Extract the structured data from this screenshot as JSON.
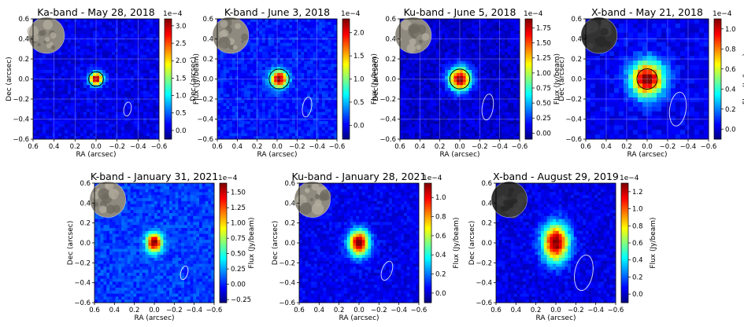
{
  "figure": {
    "colormap": "jet",
    "panel_label_colors": {
      "grid": "#c8d4ff",
      "beam": "#ffffff",
      "limb": "#000000"
    }
  },
  "chart_data": [
    {
      "type": "heatmap",
      "title": "Ka-band - May 28, 2018",
      "xlabel": "RA (arcsec)",
      "ylabel": "Dec (arcsec)",
      "xlim": [
        0.6,
        -0.6
      ],
      "ylim": [
        -0.6,
        0.6
      ],
      "xticks": [
        "0.6",
        "0.4",
        "0.2",
        "0.0",
        "−0.2",
        "−0.4",
        "−0.6"
      ],
      "yticks": [
        "−0.6",
        "−0.4",
        "−0.2",
        "0.0",
        "0.2",
        "0.4",
        "0.6"
      ],
      "colorbar": {
        "label": "Flux (Jy/beam)",
        "exponent": "1e−4",
        "range": [
          -0.25,
          3.2
        ],
        "ticks": [
          "0.0",
          "0.5",
          "1.0",
          "1.5",
          "2.0",
          "2.5",
          "3.0"
        ],
        "tick_values": [
          0,
          0.5,
          1.0,
          1.5,
          2.0,
          2.5,
          3.0
        ]
      },
      "source": {
        "ra": 0.0,
        "dec": 0.0,
        "sigma_ra": 0.045,
        "sigma_dec": 0.045,
        "peak": 3.2
      },
      "beam": {
        "ra": -0.3,
        "dec": -0.3,
        "major": 0.07,
        "minor": 0.035,
        "angle": 10
      },
      "limb": {
        "ra": 0.0,
        "dec": 0.0,
        "radius": 0.07
      },
      "moon_shade": "light",
      "grid": true
    },
    {
      "type": "heatmap",
      "title": "K-band - June 3, 2018",
      "xlabel": "RA (arcsec)",
      "ylabel": "Dec (arcsec)",
      "xlim": [
        0.6,
        -0.6
      ],
      "ylim": [
        -0.6,
        0.6
      ],
      "xticks": [
        "0.6",
        "0.4",
        "0.2",
        "0.0",
        "−0.2",
        "−0.4",
        "−0.6"
      ],
      "yticks": [
        "−0.6",
        "−0.4",
        "−0.2",
        "0.0",
        "0.2",
        "0.4",
        "0.6"
      ],
      "colorbar": {
        "label": "Flux (Jy/beam)",
        "exponent": "1e−4",
        "range": [
          -0.3,
          2.3
        ],
        "ticks": [
          "0.0",
          "0.5",
          "1.0",
          "1.5",
          "2.0"
        ],
        "tick_values": [
          0,
          0.5,
          1.0,
          1.5,
          2.0
        ]
      },
      "source": {
        "ra": -0.02,
        "dec": 0.0,
        "sigma_ra": 0.06,
        "sigma_dec": 0.06,
        "peak": 2.3
      },
      "beam": {
        "ra": -0.3,
        "dec": -0.28,
        "major": 0.1,
        "minor": 0.045,
        "angle": 10
      },
      "limb": {
        "ra": -0.02,
        "dec": 0.0,
        "radius": 0.1
      },
      "moon_shade": "light",
      "grid": true
    },
    {
      "type": "heatmap",
      "title": "Ku-band - June 5, 2018",
      "xlabel": "RA (arcsec)",
      "ylabel": "Dec (arcsec)",
      "xlim": [
        0.6,
        -0.6
      ],
      "ylim": [
        -0.6,
        0.6
      ],
      "xticks": [
        "0.6",
        "0.4",
        "0.2",
        "0.0",
        "−0.2",
        "−0.4",
        "−0.6"
      ],
      "yticks": [
        "−0.6",
        "−0.4",
        "−0.2",
        "0.0",
        "0.2",
        "0.4",
        "0.6"
      ],
      "colorbar": {
        "label": "Flux (Jy/beam)",
        "exponent": "1e−4",
        "range": [
          -0.1,
          1.9
        ],
        "ticks": [
          "0.00",
          "0.25",
          "0.50",
          "0.75",
          "1.00",
          "1.25",
          "1.50",
          "1.75"
        ],
        "tick_values": [
          0,
          0.25,
          0.5,
          0.75,
          1.0,
          1.25,
          1.5,
          1.75
        ]
      },
      "source": {
        "ra": 0.0,
        "dec": 0.0,
        "sigma_ra": 0.075,
        "sigma_dec": 0.08,
        "peak": 1.9
      },
      "beam": {
        "ra": -0.28,
        "dec": -0.28,
        "major": 0.13,
        "minor": 0.055,
        "angle": 8
      },
      "limb": {
        "ra": 0.0,
        "dec": 0.0,
        "radius": 0.1
      },
      "moon_shade": "light",
      "grid": true
    },
    {
      "type": "heatmap",
      "title": "X-band - May 21, 2018",
      "xlabel": "RA (arcsec)",
      "ylabel": "Dec (arcsec)",
      "xlim": [
        0.6,
        -0.6
      ],
      "ylim": [
        -0.6,
        0.6
      ],
      "xticks": [
        "0.6",
        "0.4",
        "0.2",
        "0.0",
        "−0.2",
        "−0.4",
        "−0.6"
      ],
      "yticks": [
        "−0.6",
        "−0.4",
        "−0.2",
        "0.0",
        "0.2",
        "0.4",
        "0.6"
      ],
      "colorbar": {
        "label": "Flux (Jy/beam)",
        "exponent": "1e−4",
        "range": [
          -0.1,
          1.1
        ],
        "ticks": [
          "0.0",
          "0.2",
          "0.4",
          "0.6",
          "0.8",
          "1.0"
        ],
        "tick_values": [
          0,
          0.2,
          0.4,
          0.6,
          0.8,
          1.0
        ]
      },
      "source": {
        "ra": 0.0,
        "dec": 0.0,
        "sigma_ra": 0.11,
        "sigma_dec": 0.12,
        "peak": 1.1
      },
      "beam": {
        "ra": -0.3,
        "dec": -0.3,
        "major": 0.17,
        "minor": 0.08,
        "angle": 8
      },
      "limb": {
        "ra": 0.0,
        "dec": 0.0,
        "radius": 0.1
      },
      "moon_shade": "dark",
      "grid": true
    },
    {
      "type": "heatmap",
      "title": "K-band - January 31, 2021",
      "xlabel": "RA (arcsec)",
      "ylabel": "Dec (arcsec)",
      "xlim": [
        0.6,
        -0.6
      ],
      "ylim": [
        -0.6,
        0.6
      ],
      "xticks": [
        "0.6",
        "0.4",
        "0.2",
        "0.0",
        "−0.2",
        "−0.4",
        "−0.6"
      ],
      "yticks": [
        "−0.6",
        "−0.4",
        "−0.2",
        "0.0",
        "0.2",
        "0.4",
        "0.6"
      ],
      "colorbar": {
        "label": "Flux (Jy/beam)",
        "exponent": "1e−4",
        "range": [
          -0.3,
          1.65
        ],
        "ticks": [
          "−0.25",
          "0.00",
          "0.25",
          "0.50",
          "0.75",
          "1.00",
          "1.25",
          "1.50"
        ],
        "tick_values": [
          -0.25,
          0,
          0.25,
          0.5,
          0.75,
          1.0,
          1.25,
          1.5
        ]
      },
      "source": {
        "ra": 0.0,
        "dec": 0.0,
        "sigma_ra": 0.055,
        "sigma_dec": 0.065,
        "peak": 1.65
      },
      "beam": {
        "ra": -0.3,
        "dec": -0.3,
        "major": 0.07,
        "minor": 0.035,
        "angle": 15
      },
      "limb": null,
      "moon_shade": "light",
      "grid": false
    },
    {
      "type": "heatmap",
      "title": "Ku-band - January 28, 2021",
      "xlabel": "RA (arcsec)",
      "ylabel": "Dec (arcsec)",
      "xlim": [
        0.6,
        -0.6
      ],
      "ylim": [
        -0.6,
        0.6
      ],
      "xticks": [
        "0.6",
        "0.4",
        "0.2",
        "0.0",
        "−0.2",
        "−0.4",
        "−0.6"
      ],
      "yticks": [
        "−0.6",
        "−0.4",
        "−0.2",
        "0.0",
        "0.2",
        "0.4",
        "0.6"
      ],
      "colorbar": {
        "label": "Flux (Jy/beam)",
        "exponent": "1e−4",
        "range": [
          -0.1,
          1.15
        ],
        "ticks": [
          "0.0",
          "0.2",
          "0.4",
          "0.6",
          "0.8",
          "1.0"
        ],
        "tick_values": [
          0,
          0.2,
          0.4,
          0.6,
          0.8,
          1.0
        ]
      },
      "source": {
        "ra": 0.0,
        "dec": 0.0,
        "sigma_ra": 0.07,
        "sigma_dec": 0.09,
        "peak": 1.15
      },
      "beam": {
        "ra": -0.28,
        "dec": -0.28,
        "major": 0.1,
        "minor": 0.05,
        "angle": 20
      },
      "limb": null,
      "moon_shade": "light",
      "grid": false
    },
    {
      "type": "heatmap",
      "title": "X-band - August 29, 2019",
      "xlabel": "RA (arcsec)",
      "ylabel": "Dec (arcsec)",
      "xlim": [
        0.6,
        -0.6
      ],
      "ylim": [
        -0.6,
        0.6
      ],
      "xticks": [
        "0.6",
        "0.4",
        "0.2",
        "0.0",
        "−0.2",
        "−0.4",
        "−0.6"
      ],
      "yticks": [
        "−0.6",
        "−0.4",
        "−0.2",
        "0.0",
        "0.2",
        "0.4",
        "0.6"
      ],
      "colorbar": {
        "label": "Flux (Jy/beam)",
        "exponent": "1e−4",
        "range": [
          -0.1,
          1.3
        ],
        "ticks": [
          "0.0",
          "0.2",
          "0.4",
          "0.6",
          "0.8",
          "1.0",
          "1.2"
        ],
        "tick_values": [
          0,
          0.2,
          0.4,
          0.6,
          0.8,
          1.0,
          1.2
        ]
      },
      "source": {
        "ra": 0.0,
        "dec": 0.0,
        "sigma_ra": 0.09,
        "sigma_dec": 0.13,
        "peak": 1.3
      },
      "beam": {
        "ra": -0.28,
        "dec": -0.3,
        "major": 0.18,
        "minor": 0.09,
        "angle": 10
      },
      "limb": null,
      "moon_shade": "dark",
      "grid": false
    }
  ]
}
